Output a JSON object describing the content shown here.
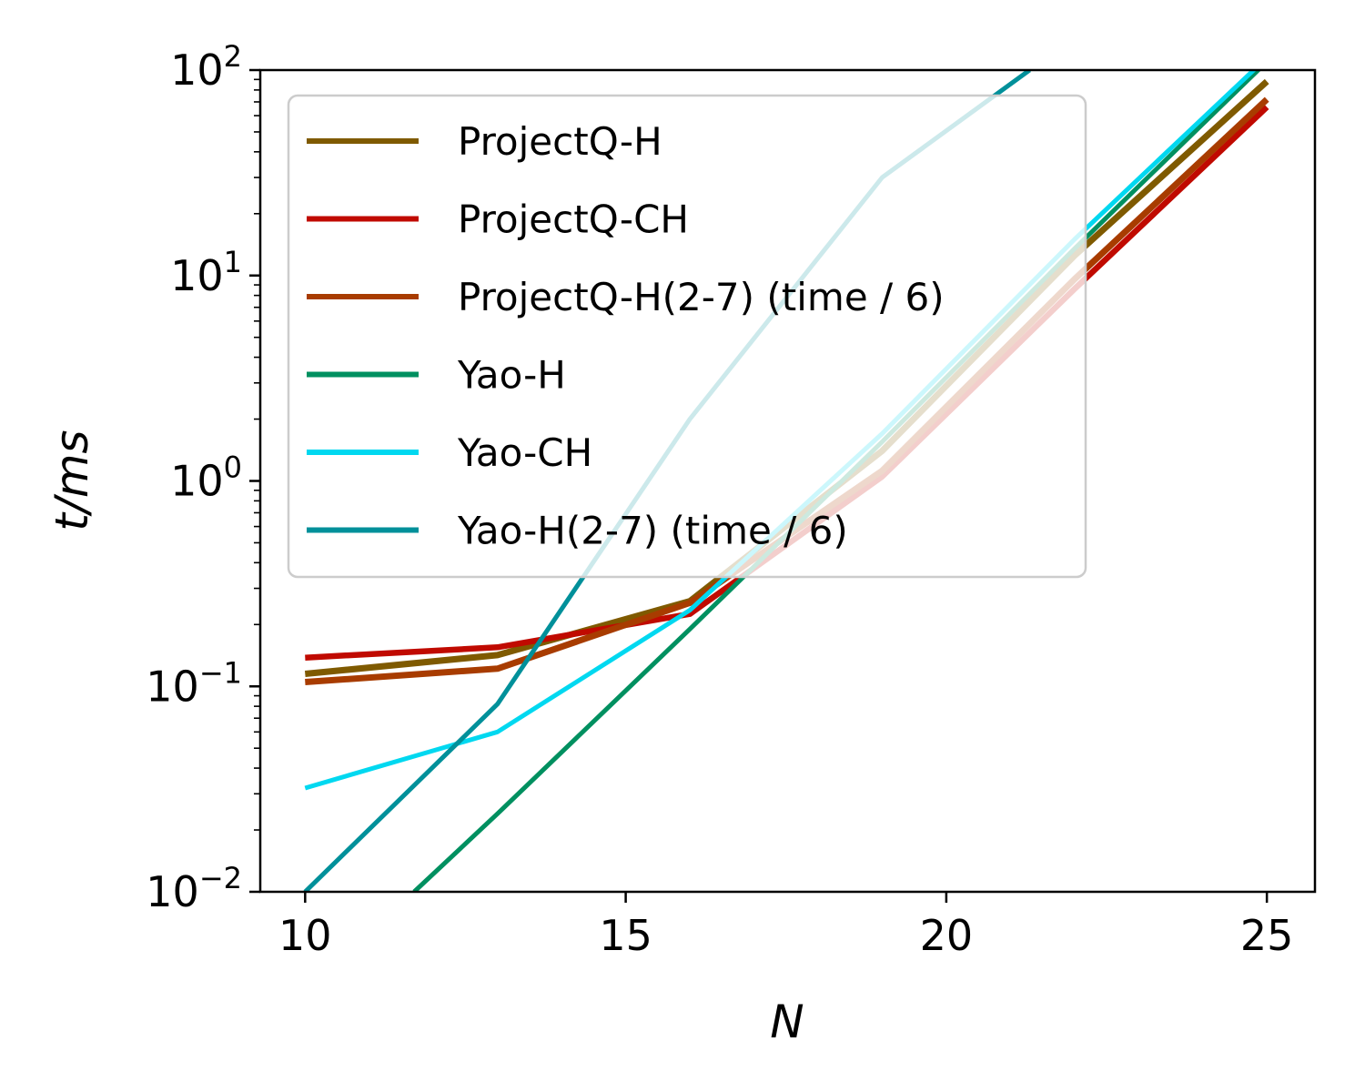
{
  "chart_data": {
    "type": "line",
    "xlabel": "N",
    "ylabel": "t/ms",
    "x_scale": "linear",
    "y_scale": "log",
    "xlim": [
      9.3,
      25.75
    ],
    "ylim": [
      0.01,
      100
    ],
    "x_ticks": [
      {
        "value": 10,
        "label": "10"
      },
      {
        "value": 15,
        "label": "15"
      },
      {
        "value": 20,
        "label": "20"
      },
      {
        "value": 25,
        "label": "25"
      }
    ],
    "y_ticks": [
      {
        "value": 0.01,
        "base": "10",
        "exp": "−2"
      },
      {
        "value": 0.1,
        "base": "10",
        "exp": "−1"
      },
      {
        "value": 1,
        "base": "10",
        "exp": "0"
      },
      {
        "value": 10,
        "base": "10",
        "exp": "1"
      },
      {
        "value": 100,
        "base": "10",
        "exp": "2"
      }
    ],
    "grid": false,
    "legend_position": "upper-left",
    "series": [
      {
        "name": "ProjectQ-H",
        "color": "#7f5a00",
        "x": [
          10,
          13,
          16,
          19,
          22,
          25
        ],
        "y": [
          0.115,
          0.142,
          0.26,
          1.4,
          12.5,
          88
        ]
      },
      {
        "name": "ProjectQ-CH",
        "color": "#c00a00",
        "x": [
          10,
          13,
          16,
          19,
          22,
          25
        ],
        "y": [
          0.138,
          0.155,
          0.225,
          1.05,
          8.6,
          66
        ]
      },
      {
        "name": "ProjectQ-H(2-7) (time / 6)",
        "color": "#a83c00",
        "x": [
          10,
          13,
          16,
          19,
          22,
          25
        ],
        "y": [
          0.105,
          0.122,
          0.255,
          1.12,
          9.6,
          72
        ]
      },
      {
        "name": "Yao-H",
        "color": "#009060",
        "x": [
          11.7,
          13,
          16,
          19,
          22,
          25
        ],
        "y": [
          0.01,
          0.024,
          0.19,
          1.55,
          13.5,
          110
        ]
      },
      {
        "name": "Yao-CH",
        "color": "#00d8f0",
        "x": [
          10,
          13,
          16,
          19,
          22,
          25
        ],
        "y": [
          0.032,
          0.06,
          0.235,
          1.7,
          15,
          115
        ]
      },
      {
        "name": "Yao-H(2-7) (time / 6)",
        "color": "#00909a",
        "x": [
          10,
          13,
          16,
          19,
          21.3
        ],
        "y": [
          0.01,
          0.082,
          2.0,
          30,
          100
        ]
      }
    ]
  }
}
